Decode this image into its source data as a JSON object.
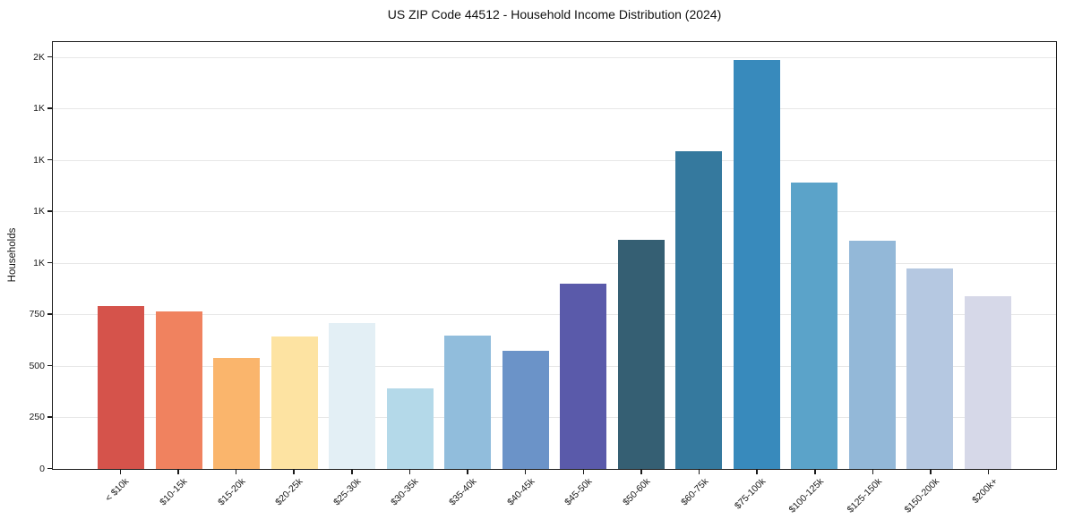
{
  "chart_data": {
    "type": "bar",
    "title": "US ZIP Code 44512 - Household Income Distribution (2024)",
    "xlabel": "",
    "ylabel": "Households",
    "categories": [
      "< $10k",
      "$10-15k",
      "$15-20k",
      "$20-25k",
      "$25-30k",
      "$30-35k",
      "$35-40k",
      "$40-45k",
      "$45-50k",
      "$50-60k",
      "$60-75k",
      "$75-100k",
      "$100-125k",
      "$125-150k",
      "$150-200k",
      "$200k+"
    ],
    "values": [
      790,
      765,
      540,
      645,
      710,
      390,
      650,
      575,
      900,
      1115,
      1545,
      1985,
      1390,
      1110,
      975,
      840
    ],
    "bar_colors": [
      "#d5534b",
      "#f0825f",
      "#fab56c",
      "#fde3a2",
      "#e3eff5",
      "#b4d9e9",
      "#91bddc",
      "#6b93c8",
      "#5a5aaa",
      "#355f73",
      "#35799e",
      "#388abc",
      "#5ba3c9",
      "#93b8d8",
      "#b5c8e1",
      "#d6d8e8"
    ],
    "ylim": [
      0,
      2083
    ],
    "y_ticks": [
      {
        "value": 0,
        "label": "0"
      },
      {
        "value": 250,
        "label": "250"
      },
      {
        "value": 500,
        "label": "500"
      },
      {
        "value": 750,
        "label": "750"
      },
      {
        "value": 1000,
        "label": "1K"
      },
      {
        "value": 1250,
        "label": "1K"
      },
      {
        "value": 1500,
        "label": "1K"
      },
      {
        "value": 1750,
        "label": "1K"
      },
      {
        "value": 2000,
        "label": "2K"
      }
    ],
    "grid": "horizontal",
    "grid_color": "#e7e7e7",
    "spine_color": "#1a1a1a",
    "background_color": "#ffffff",
    "legend": null
  }
}
